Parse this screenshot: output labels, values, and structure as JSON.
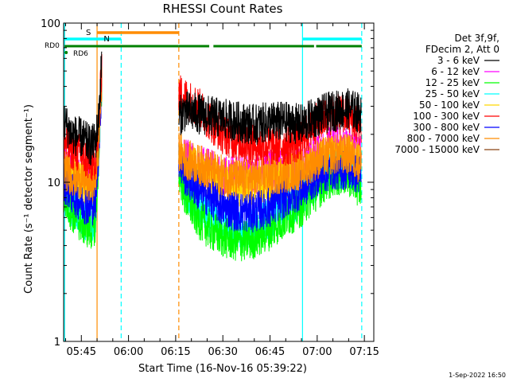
{
  "chart_data": {
    "type": "line",
    "title": "RHESSI Count Rates",
    "xlabel": "Start Time (16-Nov-16 05:39:22)",
    "ylabel": "Count Rate (s⁻¹ detector segment⁻¹)",
    "y_scale": "log",
    "ylim": [
      1,
      100
    ],
    "y_ticks": [
      {
        "value": 1,
        "label": "1"
      },
      {
        "value": 10,
        "label": "10"
      },
      {
        "value": 100,
        "label": "100"
      }
    ],
    "xlim": [
      "05:39:22",
      "07:18:00"
    ],
    "x_ticks": [
      "05:45",
      "06:00",
      "06:15",
      "06:30",
      "06:45",
      "07:00",
      "07:15"
    ],
    "legend": {
      "placement": "right",
      "header": [
        "Det 3f,9f,",
        "FDecim 2, Att 0"
      ]
    },
    "series": [
      {
        "name": "3 - 6 keV",
        "color": "#000000",
        "segments": [
          {
            "x": [
              "05:39:30",
              "05:42",
              "05:45",
              "05:48",
              "05:49:30",
              "05:50:30",
              "05:51:30"
            ],
            "y": [
              24,
              20,
              19,
              17,
              18,
              25,
              60
            ]
          },
          {
            "x": [
              "06:16:00",
              "06:18",
              "06:22",
              "06:26",
              "06:30",
              "06:35",
              "06:40",
              "06:45",
              "06:50",
              "06:55",
              "07:00",
              "07:05",
              "07:10",
              "07:14"
            ],
            "y": [
              26,
              28,
              27,
              26,
              25,
              24,
              23,
              24,
              24,
              23,
              26,
              28,
              29,
              27
            ]
          }
        ]
      },
      {
        "name": "6 - 12 keV",
        "color": "#ff00ff",
        "segments": [
          {
            "x": [
              "05:39:30",
              "05:42",
              "05:45",
              "05:48",
              "05:49:30",
              "05:50:30",
              "05:51:30"
            ],
            "y": [
              13,
              12,
              11,
              10,
              11,
              20,
              50
            ]
          },
          {
            "x": [
              "06:16:00",
              "06:18",
              "06:22",
              "06:26",
              "06:30",
              "06:35",
              "06:40",
              "06:45",
              "06:50",
              "06:55",
              "07:00",
              "07:05",
              "07:10",
              "07:14"
            ],
            "y": [
              15,
              14,
              13,
              12,
              11,
              11,
              11,
              12,
              12,
              13,
              15,
              17,
              17,
              15
            ]
          }
        ]
      },
      {
        "name": "12 - 25 keV",
        "color": "#00ff00",
        "segments": [
          {
            "x": [
              "05:39:30",
              "05:42",
              "05:45",
              "05:48",
              "05:49:30",
              "05:50:30",
              "05:51:30"
            ],
            "y": [
              8,
              6.5,
              5.5,
              5,
              5.5,
              14,
              40
            ]
          },
          {
            "x": [
              "06:16:00",
              "06:18",
              "06:22",
              "06:26",
              "06:30",
              "06:35",
              "06:40",
              "06:45",
              "06:50",
              "06:55",
              "07:00",
              "07:05",
              "07:10",
              "07:14"
            ],
            "y": [
              12,
              8,
              6,
              5,
              4.5,
              4.2,
              4.4,
              5,
              6,
              7,
              9,
              11,
              11,
              9
            ]
          }
        ]
      },
      {
        "name": "25 - 50 keV",
        "color": "#00ffff",
        "segments": [
          {
            "x": [
              "05:39:30",
              "05:42",
              "05:45",
              "05:48",
              "05:49:30",
              "05:50:30",
              "05:51:30"
            ],
            "y": [
              8.5,
              7,
              6,
              5.5,
              6,
              15,
              42
            ]
          },
          {
            "x": [
              "06:16:00",
              "06:18",
              "06:22",
              "06:26",
              "06:30",
              "06:35",
              "06:40",
              "06:45",
              "06:50",
              "06:55",
              "07:00",
              "07:05",
              "07:10",
              "07:14"
            ],
            "y": [
              13,
              9,
              7,
              6,
              5.5,
              5,
              5.2,
              6,
              7,
              8,
              10,
              12,
              12,
              10
            ]
          }
        ]
      },
      {
        "name": "50 - 100 keV",
        "color": "#ffd700",
        "segments": [
          {
            "x": [
              "05:39:30",
              "05:42",
              "05:45",
              "05:48",
              "05:49:30",
              "05:50:30",
              "05:51:30"
            ],
            "y": [
              12,
              11,
              10,
              9,
              10,
              18,
              45
            ]
          },
          {
            "x": [
              "06:16:00",
              "06:18",
              "06:22",
              "06:26",
              "06:30",
              "06:35",
              "06:40",
              "06:45",
              "06:50",
              "06:55",
              "07:00",
              "07:05",
              "07:10",
              "07:14"
            ],
            "y": [
              15,
              13,
              12,
              11,
              10,
              9.5,
              9.5,
              10,
              10.5,
              11,
              13,
              15,
              15,
              13
            ]
          }
        ]
      },
      {
        "name": "100 - 300 keV",
        "color": "#ff0000",
        "segments": [
          {
            "x": [
              "05:39:30",
              "05:42",
              "05:45",
              "05:48",
              "05:49:30",
              "05:50:30",
              "05:51:30"
            ],
            "y": [
              18,
              16,
              15,
              13,
              14,
              22,
              55
            ]
          },
          {
            "x": [
              "06:16:00",
              "06:18",
              "06:22",
              "06:26",
              "06:30",
              "06:35",
              "06:40",
              "06:45",
              "06:50",
              "06:55",
              "07:00",
              "07:05",
              "07:10",
              "07:14"
            ],
            "y": [
              36,
              34,
              30,
              24,
              20,
              18,
              17,
              17,
              17,
              18,
              24,
              27,
              26,
              22
            ]
          }
        ]
      },
      {
        "name": "300 - 800 keV",
        "color": "#0000ff",
        "segments": [
          {
            "x": [
              "05:39:30",
              "05:42",
              "05:45",
              "05:48",
              "05:49:30",
              "05:50:30",
              "05:51:30"
            ],
            "y": [
              10,
              8.5,
              7.5,
              7,
              7.5,
              16,
              43
            ]
          },
          {
            "x": [
              "06:16:00",
              "06:18",
              "06:22",
              "06:26",
              "06:30",
              "06:35",
              "06:40",
              "06:45",
              "06:50",
              "06:55",
              "07:00",
              "07:05",
              "07:10",
              "07:14"
            ],
            "y": [
              14,
              11,
              9,
              8,
              7,
              6.5,
              6.5,
              7,
              8,
              9,
              11,
              12,
              12,
              11
            ]
          }
        ]
      },
      {
        "name": "800 - 7000 keV",
        "color": "#ff8c00",
        "segments": [
          {
            "x": [
              "05:39:30",
              "05:42",
              "05:45",
              "05:48",
              "05:49:30",
              "05:50:30",
              "05:51:30"
            ],
            "y": [
              12,
              11,
              10.5,
              10,
              10.5,
              17,
              44
            ]
          },
          {
            "x": [
              "06:16:00",
              "06:18",
              "06:22",
              "06:26",
              "06:30",
              "06:35",
              "06:40",
              "06:45",
              "06:50",
              "06:55",
              "07:00",
              "07:05",
              "07:10",
              "07:14"
            ],
            "y": [
              16,
              14,
              13,
              12,
              11,
              10.5,
              10.5,
              11,
              11.5,
              12,
              14,
              15,
              15,
              13
            ]
          }
        ]
      },
      {
        "name": "7000 - 15000 keV",
        "color": "#8b4513",
        "segments": []
      }
    ],
    "vertical_lines": [
      {
        "x": "05:39:40",
        "color": "#00ffff",
        "style": "solid"
      },
      {
        "x": "05:57:40",
        "color": "#00ffff",
        "style": "dashed"
      },
      {
        "x": "05:50:00",
        "color": "#ff8c00",
        "style": "solid"
      },
      {
        "x": "06:16:00",
        "color": "#ff8c00",
        "style": "dashed"
      },
      {
        "x": "06:55:20",
        "color": "#00ffff",
        "style": "solid"
      },
      {
        "x": "07:14:10",
        "color": "#00ffff",
        "style": "dashed"
      }
    ],
    "status_bars": [
      {
        "label": "S",
        "color": "#ff8c00",
        "ranges": [
          [
            "05:50:00",
            "06:16:00"
          ]
        ]
      },
      {
        "label": "N",
        "color": "#00ffff",
        "ranges": [
          [
            "05:39:40",
            "05:57:40"
          ],
          [
            "06:55:20",
            "07:14:10"
          ]
        ]
      },
      {
        "label": "RD0",
        "color": "#008000",
        "ranges": [
          [
            "05:39:40",
            "06:16:00"
          ],
          [
            "06:16:00",
            "06:25:40"
          ],
          [
            "06:27:00",
            "06:59:00"
          ],
          [
            "06:59:40",
            "07:14:10"
          ]
        ]
      },
      {
        "label": "RD6",
        "color": "#008000",
        "ranges": [
          [
            "05:39:40",
            "05:39:50"
          ]
        ]
      }
    ],
    "grid": false,
    "timestamp": "1-Sep-2022 16:50"
  }
}
